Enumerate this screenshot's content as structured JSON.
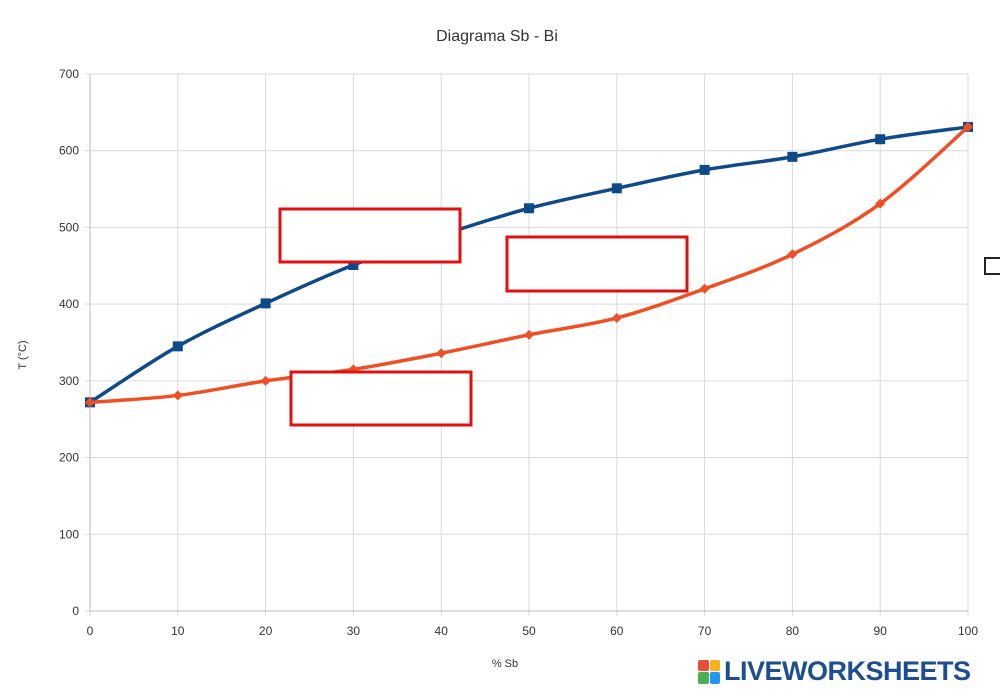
{
  "chart_data": {
    "type": "line",
    "title": "Diagrama Sb - Bi",
    "xlabel": "% Sb",
    "ylabel": "T (°C)",
    "xlim": [
      0,
      100
    ],
    "ylim": [
      0,
      700
    ],
    "x_ticks": [
      0,
      10,
      20,
      30,
      40,
      50,
      60,
      70,
      80,
      90,
      100
    ],
    "y_ticks": [
      0,
      100,
      200,
      300,
      400,
      500,
      600,
      700
    ],
    "grid": true,
    "legend": "none",
    "x": [
      0,
      10,
      20,
      30,
      40,
      50,
      60,
      70,
      80,
      90,
      100
    ],
    "series": [
      {
        "values": [
          272,
          345,
          401,
          451,
          490,
          525,
          551,
          575,
          592,
          615,
          631
        ],
        "color": "#0e4a8a",
        "marker": "square"
      },
      {
        "values": [
          272,
          281,
          300,
          315,
          336,
          360,
          382,
          420,
          465,
          531,
          631
        ],
        "color": "#f04e23",
        "marker": "diamond"
      }
    ],
    "annotation_box_color": "#e01010"
  },
  "logo": {
    "text": "LIVEWORKSHEETS"
  }
}
